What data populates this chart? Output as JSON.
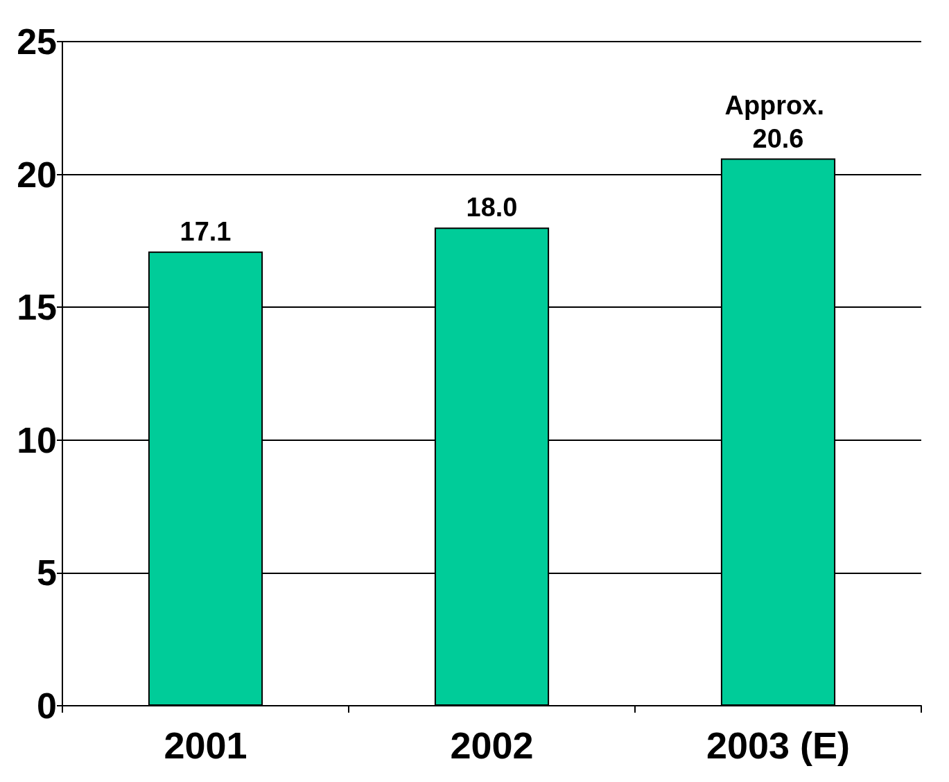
{
  "chart_data": {
    "type": "bar",
    "categories": [
      "2001",
      "2002",
      "2003 (E)"
    ],
    "values": [
      17.1,
      18.0,
      20.6
    ],
    "value_labels": [
      "17.1",
      "18.0",
      "Approx. 20.6"
    ],
    "color": "#00cc99",
    "ylim": [
      0,
      25
    ],
    "yticks": [
      0,
      5,
      10,
      15,
      20,
      25
    ],
    "grid": "y"
  }
}
